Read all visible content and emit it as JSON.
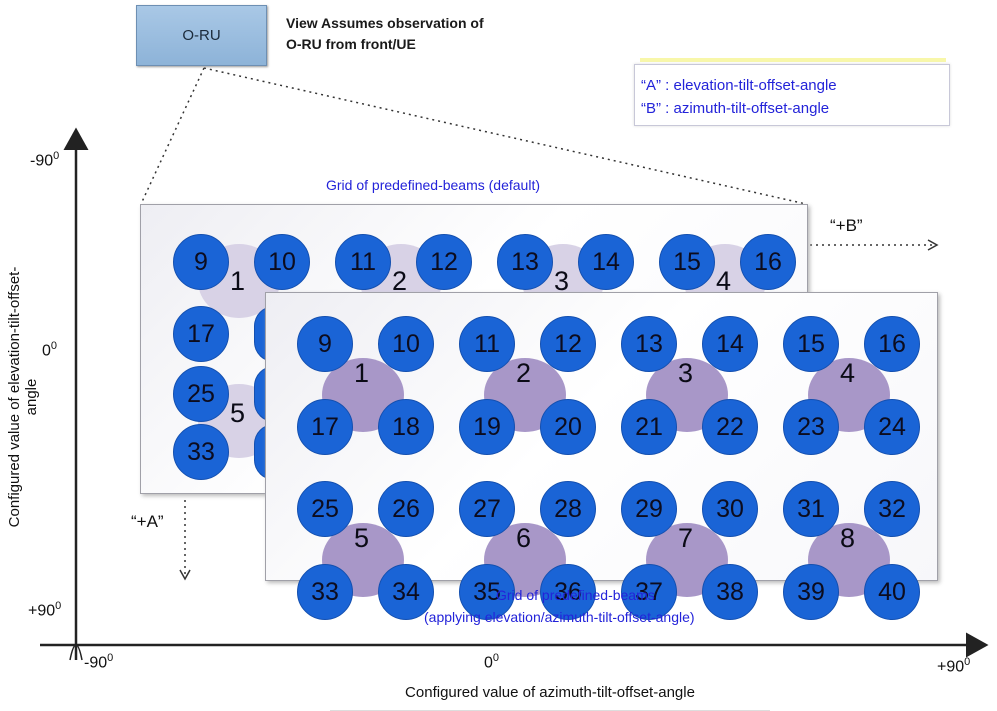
{
  "header": {
    "oru_label": "O-RU",
    "view_note_line1": "View Assumes observation of",
    "view_note_line2": "O-RU from front/UE"
  },
  "legend": {
    "a_line": "“A” : elevation-tilt-offset-angle",
    "b_line": "“B” : azimuth-tilt-offset-angle"
  },
  "back_grid": {
    "title": "Grid of predefined-beams (default)",
    "row1_beams": [
      "9",
      "10",
      "11",
      "12",
      "13",
      "14",
      "15",
      "16"
    ],
    "row1_groups": [
      "1",
      "2",
      "3",
      "4"
    ],
    "visible_beams_left": [
      "17",
      "25",
      "33"
    ],
    "visible_group_left": "5"
  },
  "front_grid": {
    "title_line1": "Grid of predefined-beams",
    "title_line2": "(applying elevation/azimuth-tilt-offset-angle)",
    "beams": [
      [
        "9",
        "10",
        "11",
        "12",
        "13",
        "14",
        "15",
        "16"
      ],
      [
        "17",
        "18",
        "19",
        "20",
        "21",
        "22",
        "23",
        "24"
      ],
      [
        "25",
        "26",
        "27",
        "28",
        "29",
        "30",
        "31",
        "32"
      ],
      [
        "33",
        "34",
        "35",
        "36",
        "37",
        "38",
        "39",
        "40"
      ]
    ],
    "groups": [
      "1",
      "2",
      "3",
      "4",
      "5",
      "6",
      "7",
      "8"
    ]
  },
  "directions": {
    "plus_b": "“+B”",
    "plus_a": "“+A”"
  },
  "y_axis": {
    "title": "Configured value of elevation-tilt-offset-angle",
    "top": "-90",
    "mid": "0",
    "bottom": "+90",
    "sup": "0"
  },
  "x_axis": {
    "title": "Configured value of azimuth-tilt-offset-angle",
    "left": "-90",
    "mid": "0",
    "right": "+90",
    "sup": "0"
  },
  "colors": {
    "beam": "#1a64d6",
    "label_blue": "#2323d9",
    "group_halo_front": "#a897c8",
    "group_halo_back": "#d8d2e6"
  }
}
